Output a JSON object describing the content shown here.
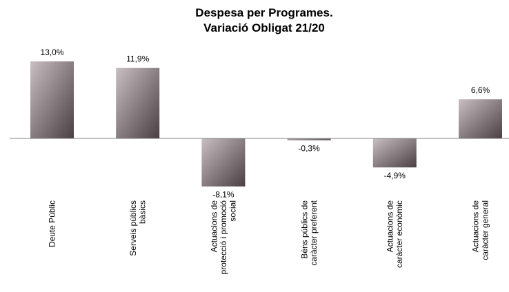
{
  "chart_data": {
    "type": "bar",
    "title_lines": [
      "Despesa per Programes.",
      "Variació Obligat 21/20"
    ],
    "categories": [
      [
        "Deute Públic"
      ],
      [
        "Serveis públics",
        "bàsics"
      ],
      [
        "Actuacions de",
        "protecció i promoció",
        "social"
      ],
      [
        "Béns públics de",
        "caràcter preferent"
      ],
      [
        "Actuacions de",
        "caràcter econòmic"
      ],
      [
        "Actuacions de",
        "caràcter general"
      ]
    ],
    "values": [
      13.0,
      11.9,
      -8.1,
      -0.3,
      -4.9,
      6.6
    ],
    "data_labels": [
      "13,0%",
      "11,9%",
      "-8,1%",
      "-0,3%",
      "-4,9%",
      "6,6%"
    ],
    "unit": "%",
    "ylim": [
      -8.1,
      13.0
    ],
    "legend": "none",
    "grid": false,
    "colors": {
      "bar_light": "#c9bfc2",
      "bar_dark": "#4a3f42",
      "axis": "#7f7f7f"
    }
  }
}
